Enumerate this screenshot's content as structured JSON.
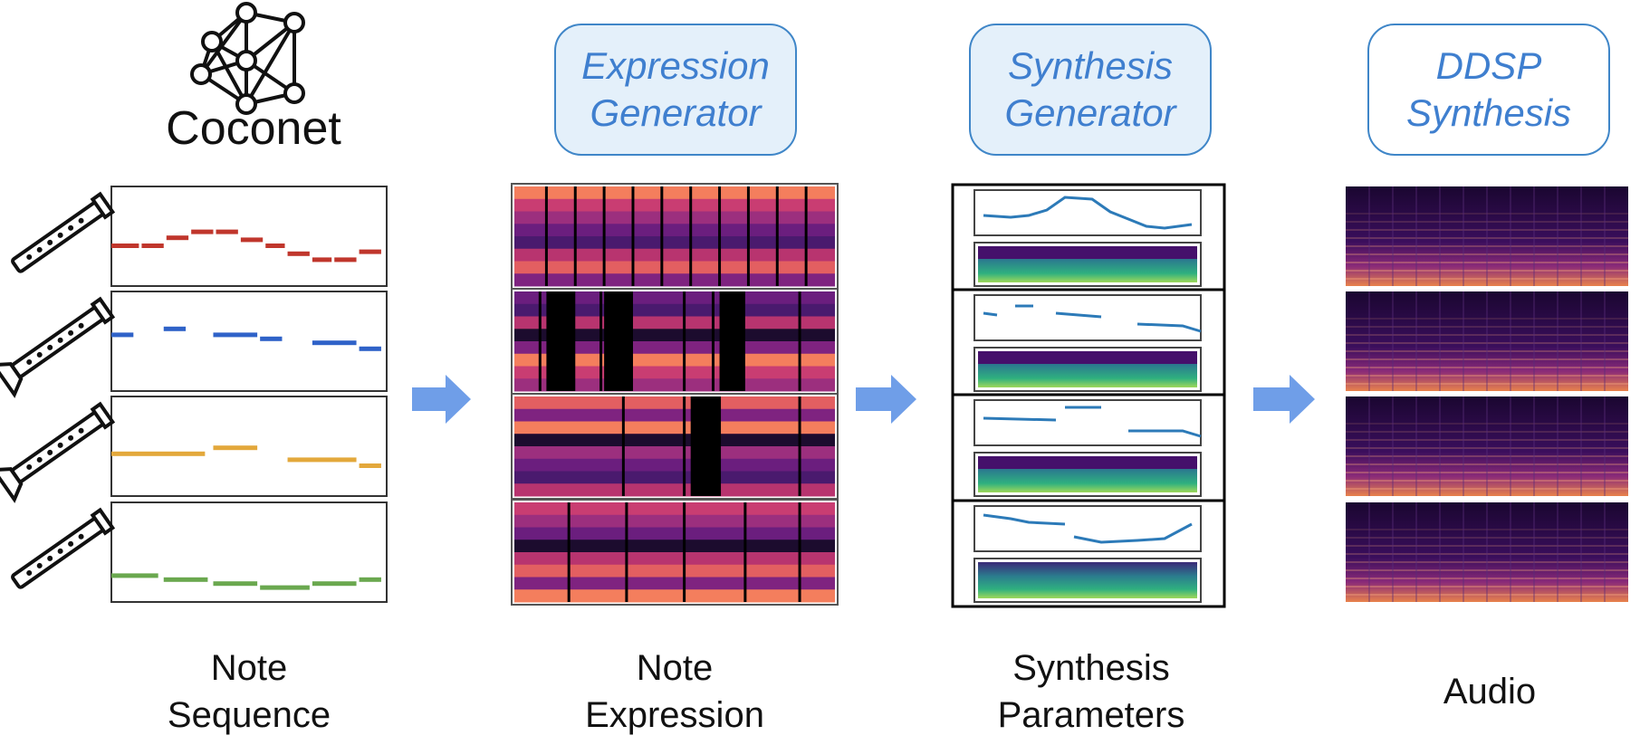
{
  "model": {
    "name": "Coconet"
  },
  "generators": {
    "expression": [
      "Expression",
      "Generator"
    ],
    "synthesis": [
      "Synthesis",
      "Generator"
    ],
    "ddsp": [
      "DDSP",
      "Synthesis"
    ]
  },
  "stages": {
    "note_sequence": [
      "Note",
      "Sequence"
    ],
    "note_expression": [
      "Note",
      "Expression"
    ],
    "synthesis_parameters": [
      "Synthesis",
      "Parameters"
    ],
    "audio": [
      "Audio"
    ]
  },
  "colors": {
    "accent_blue": "#3f7fcf",
    "box_fill": "#e4f0fa",
    "arrow": "#6f9ee8",
    "voices": [
      "#c0362c",
      "#2f62c8",
      "#e3a83b",
      "#6aa84f"
    ]
  },
  "voices": [
    {
      "instrument": "flute-icon",
      "notes": [
        [
          0,
          0.1,
          0.6
        ],
        [
          0.11,
          0.19,
          0.6
        ],
        [
          0.2,
          0.28,
          0.52
        ],
        [
          0.29,
          0.37,
          0.46
        ],
        [
          0.38,
          0.46,
          0.46
        ],
        [
          0.47,
          0.55,
          0.54
        ],
        [
          0.56,
          0.63,
          0.6
        ],
        [
          0.64,
          0.72,
          0.68
        ],
        [
          0.73,
          0.8,
          0.74
        ],
        [
          0.81,
          0.89,
          0.74
        ],
        [
          0.9,
          0.98,
          0.66
        ]
      ]
    },
    {
      "instrument": "oboe-icon",
      "notes": [
        [
          0,
          0.08,
          0.44
        ],
        [
          0.19,
          0.27,
          0.38
        ],
        [
          0.37,
          0.53,
          0.44
        ],
        [
          0.54,
          0.62,
          0.48
        ],
        [
          0.73,
          0.89,
          0.52
        ],
        [
          0.9,
          0.98,
          0.58
        ]
      ]
    },
    {
      "instrument": "clarinet-icon",
      "notes": [
        [
          0,
          0.34,
          0.58
        ],
        [
          0.37,
          0.53,
          0.52
        ],
        [
          0.64,
          0.89,
          0.64
        ],
        [
          0.9,
          0.98,
          0.7
        ]
      ]
    },
    {
      "instrument": "bassoon-icon",
      "notes": [
        [
          0,
          0.17,
          0.74
        ],
        [
          0.19,
          0.35,
          0.78
        ],
        [
          0.37,
          0.53,
          0.82
        ],
        [
          0.54,
          0.72,
          0.86
        ],
        [
          0.73,
          0.89,
          0.82
        ],
        [
          0.9,
          0.98,
          0.78
        ]
      ]
    }
  ]
}
